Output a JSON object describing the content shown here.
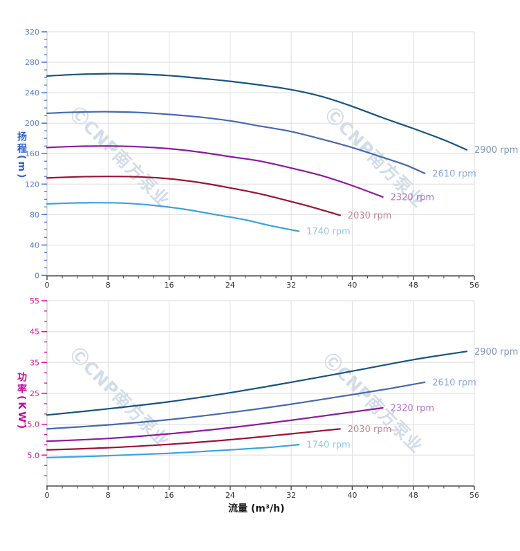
{
  "page": {
    "background": "#ffffff"
  },
  "watermark": {
    "text": "ⒸCNP南方泵业"
  },
  "axis_titles": {
    "head": "扬程(m)",
    "power": "功率(KW)",
    "flow": "流量 (m³/h)"
  },
  "chart_data": [
    {
      "type": "line",
      "ylabel": "扬程(m)",
      "xlabel": "",
      "xlim": [
        0,
        56
      ],
      "ylim": [
        0,
        320
      ],
      "x_ticks": [
        0,
        8,
        16,
        24,
        32,
        40,
        48,
        56
      ],
      "x_tick_labels": [
        "0",
        "8",
        "16",
        "24",
        "32",
        "40",
        "48",
        "56"
      ],
      "x_minor_step": 2,
      "y_ticks": [
        0,
        40,
        80,
        120,
        160,
        200,
        240,
        280,
        320
      ],
      "y_tick_labels": [
        "0",
        "40",
        "80",
        "120",
        "160",
        "200",
        "240",
        "280",
        "320"
      ],
      "y_minor_step": 10,
      "grid": true,
      "legend_position": "curve-end-labels",
      "tick_color": "#4d7ae0",
      "tick_label_color": "#5b7ed6",
      "series": [
        {
          "name": "2900 rpm",
          "color": "#175380",
          "label_color": "#7d97bb",
          "points": [
            [
              0,
              262
            ],
            [
              4,
              264
            ],
            [
              8,
              265
            ],
            [
              12,
              264.5
            ],
            [
              16,
              262.5
            ],
            [
              20,
              259
            ],
            [
              24,
              255
            ],
            [
              28,
              250
            ],
            [
              32,
              244
            ],
            [
              36,
              235
            ],
            [
              40,
              222
            ],
            [
              44,
              207
            ],
            [
              48,
              193
            ],
            [
              52,
              178
            ],
            [
              55,
              165
            ]
          ]
        },
        {
          "name": "2610 rpm",
          "color": "#4668af",
          "label_color": "#8ba7dd",
          "points": [
            [
              0,
              213
            ],
            [
              4,
              214.5
            ],
            [
              8,
              215
            ],
            [
              12,
              214
            ],
            [
              16,
              211.5
            ],
            [
              20,
              208
            ],
            [
              24,
              203
            ],
            [
              28,
              196
            ],
            [
              32,
              189
            ],
            [
              36,
              179
            ],
            [
              40,
              168
            ],
            [
              44,
              155
            ],
            [
              47,
              145
            ],
            [
              49.5,
              134
            ]
          ]
        },
        {
          "name": "2320 rpm",
          "color": "#8d18a0",
          "label_color": "#b473ca",
          "points": [
            [
              0,
              168
            ],
            [
              4,
              169.5
            ],
            [
              8,
              170
            ],
            [
              12,
              169
            ],
            [
              16,
              166.5
            ],
            [
              20,
              162
            ],
            [
              24,
              156
            ],
            [
              28,
              150
            ],
            [
              32,
              141
            ],
            [
              36,
              131
            ],
            [
              40,
              118
            ],
            [
              44,
              103
            ]
          ]
        },
        {
          "name": "2030 rpm",
          "color": "#9c1233",
          "label_color": "#c3838f",
          "points": [
            [
              0,
              128
            ],
            [
              4,
              129.5
            ],
            [
              8,
              130
            ],
            [
              12,
              129.5
            ],
            [
              16,
              127
            ],
            [
              20,
              122
            ],
            [
              24,
              115
            ],
            [
              28,
              107
            ],
            [
              32,
              97
            ],
            [
              35,
              89
            ],
            [
              38.4,
              79
            ]
          ]
        },
        {
          "name": "1740 rpm",
          "color": "#39a3dd",
          "label_color": "#8fc6ee",
          "points": [
            [
              0,
              94
            ],
            [
              3,
              95
            ],
            [
              6,
              95.5
            ],
            [
              10,
              95
            ],
            [
              14,
              92
            ],
            [
              18,
              87
            ],
            [
              22,
              80
            ],
            [
              26,
              73
            ],
            [
              29,
              66
            ],
            [
              33,
              58
            ]
          ]
        }
      ]
    },
    {
      "type": "line",
      "ylabel": "功率(KW)",
      "xlabel": "流量 (m³/h)",
      "xlim": [
        0,
        56
      ],
      "ylim": [
        -5,
        55
      ],
      "x_ticks": [
        0,
        8,
        16,
        24,
        32,
        40,
        48,
        56
      ],
      "x_tick_labels": [
        "0",
        "8",
        "16",
        "24",
        "32",
        "40",
        "48",
        "56"
      ],
      "x_minor_step": 2,
      "y_ticks": [
        5,
        15,
        25,
        35,
        45,
        55
      ],
      "y_tick_labels": [
        "5.0",
        "15.0",
        "25",
        "35",
        "45",
        "55"
      ],
      "y_minor_step": 3.3333,
      "grid": true,
      "legend_position": "curve-end-labels",
      "tick_color": "#e8119d",
      "tick_label_color": "#d8189b",
      "series": [
        {
          "name": "2900 rpm",
          "color": "#175380",
          "label_color": "#7d97bb",
          "points": [
            [
              0,
              18
            ],
            [
              8,
              20
            ],
            [
              16,
              22.3
            ],
            [
              24,
              25.2
            ],
            [
              32,
              28.6
            ],
            [
              40,
              32.2
            ],
            [
              48,
              35.9
            ],
            [
              55,
              38.6
            ]
          ]
        },
        {
          "name": "2610 rpm",
          "color": "#4668af",
          "label_color": "#8ba7dd",
          "points": [
            [
              0,
              13.5
            ],
            [
              8,
              14.8
            ],
            [
              16,
              16.5
            ],
            [
              24,
              18.8
            ],
            [
              32,
              21.5
            ],
            [
              40,
              24.6
            ],
            [
              45,
              26.6
            ],
            [
              49.5,
              28.6
            ]
          ]
        },
        {
          "name": "2320 rpm",
          "color": "#8d18a0",
          "label_color": "#b473ca",
          "points": [
            [
              0,
              9.5
            ],
            [
              8,
              10.4
            ],
            [
              16,
              11.9
            ],
            [
              24,
              13.9
            ],
            [
              32,
              16.3
            ],
            [
              38,
              18.3
            ],
            [
              44,
              20.3
            ]
          ]
        },
        {
          "name": "2030 rpm",
          "color": "#9c1233",
          "label_color": "#c3838f",
          "points": [
            [
              0,
              6.7
            ],
            [
              8,
              7.4
            ],
            [
              16,
              8.5
            ],
            [
              24,
              10
            ],
            [
              32,
              11.9
            ],
            [
              38.4,
              13.5
            ]
          ]
        },
        {
          "name": "1740 rpm",
          "color": "#39a3dd",
          "label_color": "#8fc6ee",
          "points": [
            [
              0,
              4.2
            ],
            [
              8,
              4.8
            ],
            [
              16,
              5.6
            ],
            [
              24,
              6.7
            ],
            [
              29,
              7.5
            ],
            [
              33,
              8.4
            ]
          ]
        }
      ]
    }
  ]
}
